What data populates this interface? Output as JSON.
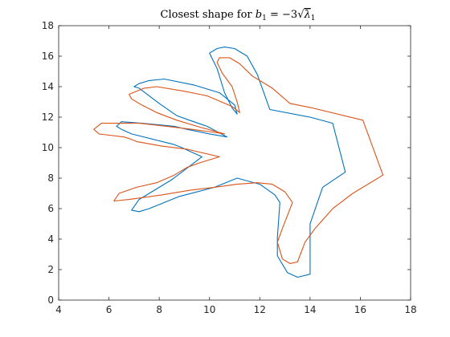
{
  "chart_data": {
    "type": "line",
    "title": {
      "prefix": "Closest shape for ",
      "variable": "b",
      "subscript": "1",
      "equals": " = −3",
      "radical_var": "λ",
      "radical_sub": "1"
    },
    "xlabel": "",
    "ylabel": "",
    "xlim": [
      4,
      18
    ],
    "ylim": [
      0,
      18
    ],
    "xticks": [
      "4",
      "6",
      "8",
      "10",
      "12",
      "14",
      "16",
      "18"
    ],
    "yticks": [
      "0",
      "2",
      "4",
      "6",
      "8",
      "10",
      "12",
      "14",
      "16",
      "18"
    ],
    "grid": false,
    "series": [
      {
        "color": "#0072BD",
        "x": [
          10.3,
          10.6,
          11.0,
          11.5,
          11.9,
          12.4,
          14.0,
          14.9,
          15.4,
          14.5,
          14.0,
          14.0,
          13.5,
          13.1,
          12.7,
          12.7,
          12.8,
          12.6,
          12.0,
          11.1,
          10.2,
          8.8,
          8.2,
          7.6,
          7.2,
          6.9,
          7.2,
          7.7,
          8.5,
          9.3,
          9.7,
          9.3,
          8.9,
          8.6,
          6.9,
          6.5,
          6.3,
          6.5,
          7.3,
          8.6,
          9.1,
          10.0,
          10.7,
          9.9,
          9.2,
          8.7,
          8.0,
          7.6,
          7.2,
          7.0,
          7.2,
          7.6,
          8.2,
          9.4,
          10.4,
          11.0,
          11.1,
          10.9,
          10.6,
          10.3,
          10.0,
          10.3
        ],
        "y": [
          16.5,
          16.6,
          16.5,
          16.0,
          14.8,
          12.5,
          12.0,
          11.6,
          8.4,
          7.4,
          5.0,
          1.7,
          1.5,
          1.8,
          2.9,
          4.1,
          6.4,
          6.9,
          7.6,
          8.0,
          7.4,
          6.8,
          6.4,
          6.0,
          5.8,
          5.9,
          6.6,
          7.1,
          7.9,
          8.9,
          9.4,
          9.7,
          10.0,
          10.2,
          10.9,
          11.2,
          11.4,
          11.7,
          11.6,
          11.4,
          11.2,
          10.9,
          10.7,
          11.4,
          11.8,
          12.1,
          12.9,
          13.4,
          13.9,
          14.0,
          14.2,
          14.4,
          14.5,
          14.1,
          13.6,
          12.8,
          12.2,
          12.6,
          13.6,
          15.2,
          16.2,
          16.5
        ]
      },
      {
        "color": "#D95319",
        "x": [
          10.3,
          10.4,
          10.8,
          11.2,
          11.7,
          12.5,
          13.2,
          14.1,
          16.1,
          16.9,
          15.7,
          14.9,
          14.2,
          13.8,
          13.5,
          13.2,
          12.9,
          12.7,
          12.9,
          13.3,
          13.0,
          12.5,
          11.9,
          11.1,
          10.2,
          9.2,
          8.1,
          6.8,
          6.2,
          6.4,
          7.1,
          7.9,
          8.6,
          9.1,
          9.6,
          10.4,
          9.1,
          8.1,
          7.1,
          6.8,
          6.6,
          5.6,
          5.4,
          5.7,
          6.3,
          7.2,
          8.3,
          9.3,
          10.2,
          10.6,
          9.5,
          8.7,
          7.9,
          7.3,
          6.9,
          6.8,
          7.4,
          7.9,
          9.0,
          9.9,
          10.9,
          11.2,
          11.1,
          10.9,
          10.5,
          10.3
        ],
        "y": [
          15.6,
          15.9,
          15.9,
          15.5,
          14.7,
          13.9,
          12.9,
          12.6,
          11.8,
          8.2,
          7.0,
          6.0,
          4.7,
          3.8,
          2.5,
          2.4,
          2.7,
          3.8,
          4.7,
          6.4,
          7.1,
          7.6,
          7.7,
          7.6,
          7.4,
          7.2,
          6.9,
          6.6,
          6.5,
          7.0,
          7.4,
          7.7,
          8.2,
          8.7,
          9.0,
          9.4,
          9.9,
          10.1,
          10.4,
          10.6,
          10.7,
          10.9,
          11.2,
          11.6,
          11.6,
          11.6,
          11.4,
          11.2,
          11.0,
          10.9,
          11.4,
          11.8,
          12.3,
          12.8,
          13.2,
          13.5,
          13.9,
          14.0,
          13.7,
          13.4,
          12.7,
          12.3,
          13.0,
          14.0,
          14.9,
          15.6
        ]
      }
    ]
  }
}
